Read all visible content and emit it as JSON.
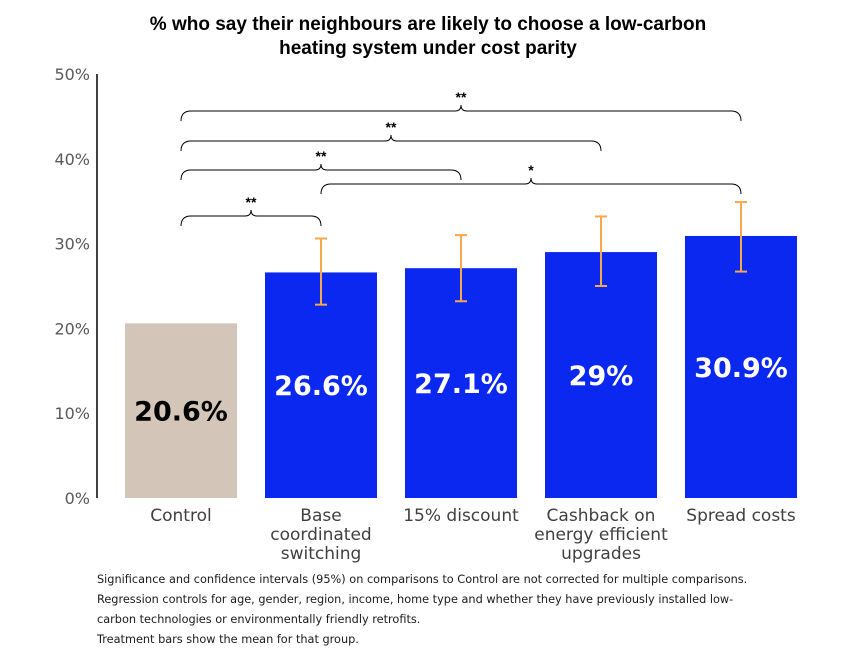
{
  "chart_data": {
    "type": "bar",
    "title_lines": [
      "% who say their neighbours are likely to choose a low-carbon",
      "heating system under cost parity"
    ],
    "categories": [
      [
        "Control"
      ],
      [
        "Base",
        "coordinated",
        "switching"
      ],
      [
        "15% discount"
      ],
      [
        "Cashback on",
        "energy efficient",
        "upgrades"
      ],
      [
        "Spread costs"
      ]
    ],
    "values": [
      20.6,
      26.6,
      27.1,
      29,
      30.9
    ],
    "data_labels": [
      "20.6%",
      "26.6%",
      "27.1%",
      "29%",
      "30.9%"
    ],
    "error_bars": [
      null,
      [
        22.8,
        30.6
      ],
      [
        23.2,
        31.0
      ],
      [
        25.0,
        33.2
      ],
      [
        26.7,
        34.9
      ]
    ],
    "bar_colors": [
      "#d3c6b9",
      "#0a28f0",
      "#0a28f0",
      "#0a28f0",
      "#0a28f0"
    ],
    "label_colors": [
      "#000000",
      "#ffffff",
      "#ffffff",
      "#ffffff",
      "#ffffff"
    ],
    "error_color": "#f5a84d",
    "ylim": [
      0,
      50
    ],
    "yticks": [
      0,
      10,
      20,
      30,
      40,
      50
    ],
    "ytick_labels": [
      "0%",
      "10%",
      "20%",
      "30%",
      "40%",
      "50%"
    ],
    "grid": false,
    "significance_brackets": [
      {
        "from": 0,
        "to": 1,
        "label": "**"
      },
      {
        "from": 1,
        "to": 4,
        "label": "*"
      },
      {
        "from": 0,
        "to": 2,
        "label": "**"
      },
      {
        "from": 0,
        "to": 3,
        "label": "**"
      },
      {
        "from": 0,
        "to": 4,
        "label": "**"
      }
    ]
  },
  "notes": [
    "Significance and confidence intervals (95%) on comparisons to Control are not corrected for multiple comparisons.",
    "Regression controls for age, gender, region, income, home type and whether they have previously installed low-",
    "carbon technologies or  environmentally  friendly retrofits.",
    "Treatment bars show the mean for that group."
  ]
}
